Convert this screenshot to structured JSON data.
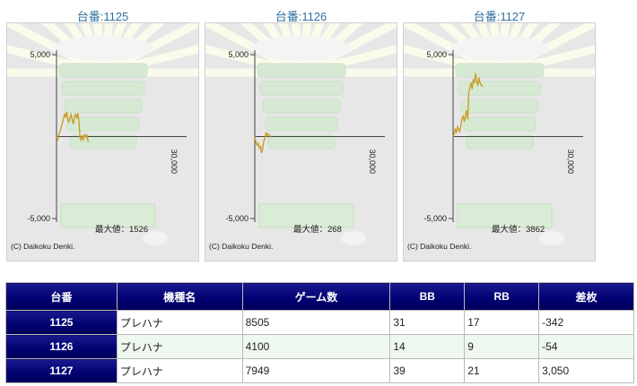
{
  "chart_data": [
    {
      "type": "line",
      "title": "台番:1125",
      "yticks": [
        "5,000",
        "-5,000"
      ],
      "xtick": "30,000",
      "ylim": [
        -5500,
        5500
      ],
      "xlim": [
        0,
        30000
      ],
      "max_label": "最大値：1526",
      "copyright": "(C) Daikoku Denki.",
      "x": [
        0,
        300,
        600,
        900,
        1200,
        1500,
        1800,
        2100,
        2400,
        2700,
        3000,
        3300,
        3600,
        3900,
        4200,
        4500,
        4800,
        5100,
        5400,
        5700,
        6000,
        6300,
        6600,
        6900,
        7200,
        7500,
        7800,
        8100,
        8500
      ],
      "y": [
        0,
        -180,
        120,
        300,
        520,
        780,
        1050,
        1350,
        1200,
        1520,
        1050,
        900,
        1180,
        1350,
        1000,
        760,
        1250,
        1350,
        1150,
        1420,
        920,
        -120,
        -220,
        80,
        -160,
        120,
        -20,
        90,
        -342
      ]
    },
    {
      "type": "line",
      "title": "台番:1126",
      "yticks": [
        "5,000",
        "-5,000"
      ],
      "xtick": "30,000",
      "ylim": [
        -5500,
        5500
      ],
      "xlim": [
        0,
        30000
      ],
      "max_label": "最大値：268",
      "copyright": "(C) Daikoku Denki.",
      "x": [
        0,
        300,
        600,
        900,
        1200,
        1500,
        1800,
        2100,
        2400,
        2700,
        3000,
        3300,
        3600,
        3900,
        4100
      ],
      "y": [
        0,
        -350,
        -520,
        -420,
        -700,
        -600,
        -1000,
        -720,
        -280,
        -120,
        268,
        50,
        150,
        120,
        -54
      ]
    },
    {
      "type": "line",
      "title": "台番:1127",
      "yticks": [
        "5,000",
        "-5,000"
      ],
      "xtick": "30,000",
      "ylim": [
        -5500,
        5500
      ],
      "xlim": [
        0,
        30000
      ],
      "max_label": "最大値：3862",
      "copyright": "(C) Daikoku Denki.",
      "x": [
        0,
        300,
        600,
        900,
        1200,
        1500,
        1800,
        2100,
        2400,
        2700,
        3000,
        3300,
        3600,
        3900,
        4200,
        4500,
        4800,
        5100,
        5400,
        5700,
        6000,
        6300,
        6600,
        6900,
        7200,
        7500,
        7949
      ],
      "y": [
        0,
        150,
        500,
        220,
        600,
        450,
        300,
        700,
        1150,
        1250,
        900,
        1300,
        1600,
        1050,
        2700,
        3000,
        3300,
        2900,
        3500,
        3250,
        3862,
        3400,
        3100,
        3600,
        3300,
        3150,
        3050
      ]
    }
  ],
  "table": {
    "headers": [
      "台番",
      "機種名",
      "ゲーム数",
      "BB",
      "RB",
      "差枚"
    ],
    "rows": [
      {
        "no": "1125",
        "model": "プレハナ",
        "games": "8505",
        "bb": "31",
        "rb": "17",
        "diff": "-342"
      },
      {
        "no": "1126",
        "model": "プレハナ",
        "games": "4100",
        "bb": "14",
        "rb": "9",
        "diff": "-54"
      },
      {
        "no": "1127",
        "model": "プレハナ",
        "games": "7949",
        "bb": "39",
        "rb": "21",
        "diff": "3,050"
      }
    ]
  },
  "colors": {
    "line": "#c8a02a",
    "header": "#000070",
    "negative": "#e00000"
  }
}
